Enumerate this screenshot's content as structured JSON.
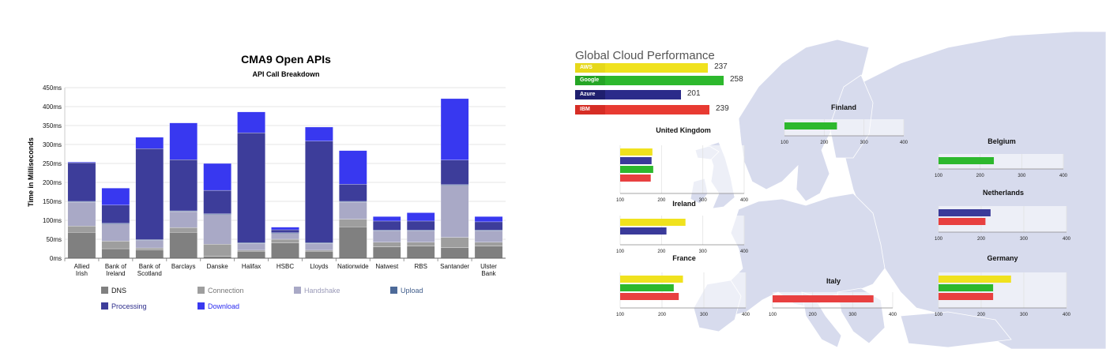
{
  "left_chart": {
    "title": "CMA9 Open APIs",
    "subtitle": "API Call Breakdown",
    "ylabel": "Time in Milliseconds",
    "yticks": [
      "0ms",
      "50ms",
      "100ms",
      "150ms",
      "200ms",
      "250ms",
      "300ms",
      "350ms",
      "400ms",
      "450ms"
    ],
    "legend": [
      "DNS",
      "Connection",
      "Handshake",
      "Upload",
      "Processing",
      "Download"
    ]
  },
  "right_chart": {
    "title": "Global Cloud Performance",
    "summary": [
      {
        "tag": "AWS",
        "value": "237"
      },
      {
        "tag": "Google",
        "value": "258"
      },
      {
        "tag": "Azure",
        "value": "201"
      },
      {
        "tag": "IBM",
        "value": "239"
      }
    ],
    "regions": [
      {
        "name": "United Kingdom"
      },
      {
        "name": "Ireland"
      },
      {
        "name": "France"
      },
      {
        "name": "Finland"
      },
      {
        "name": "Belgium"
      },
      {
        "name": "Netherlands"
      },
      {
        "name": "Italy"
      },
      {
        "name": "Germany"
      }
    ]
  },
  "chart_data": [
    {
      "type": "bar",
      "stacked": true,
      "title": "CMA9 Open APIs",
      "subtitle": "API Call Breakdown",
      "xlabel": "",
      "ylabel": "Time in Milliseconds",
      "ylim": [
        0,
        450
      ],
      "grid": true,
      "legend_position": "bottom",
      "categories": [
        "Allied Irish",
        "Bank of Ireland",
        "Bank of Scotland",
        "Barclays",
        "Danske",
        "Halifax",
        "HSBC",
        "Lloyds",
        "Nationwide",
        "Natwest",
        "RBS",
        "Santander",
        "Ulster Bank"
      ],
      "series": [
        {
          "name": "DNS",
          "color": "#808080",
          "values": [
            68,
            25,
            22,
            68,
            5,
            18,
            40,
            18,
            83,
            30,
            32,
            28,
            32
          ]
        },
        {
          "name": "Connection",
          "color": "#9e9e9e",
          "values": [
            17,
            20,
            5,
            13,
            32,
            3,
            10,
            3,
            20,
            12,
            10,
            27,
            10
          ]
        },
        {
          "name": "Handshake",
          "color": "#a9a9c6",
          "values": [
            63,
            45,
            20,
            42,
            78,
            18,
            15,
            18,
            45,
            30,
            30,
            137,
            30
          ]
        },
        {
          "name": "Upload",
          "color": "#4d6a99",
          "values": [
            2,
            2,
            2,
            2,
            2,
            2,
            2,
            2,
            2,
            2,
            2,
            2,
            2
          ]
        },
        {
          "name": "Processing",
          "color": "#3d3d9a",
          "values": [
            102,
            48,
            240,
            135,
            62,
            290,
            8,
            268,
            45,
            24,
            24,
            65,
            22
          ]
        },
        {
          "name": "Download",
          "color": "#3838f0",
          "values": [
            2,
            45,
            30,
            97,
            71,
            55,
            7,
            37,
            89,
            12,
            22,
            162,
            14
          ]
        }
      ]
    },
    {
      "type": "bar",
      "orientation": "horizontal",
      "title": "Global Cloud Performance",
      "categories": [
        "AWS",
        "Google",
        "Azure",
        "IBM"
      ],
      "values": [
        237,
        258,
        201,
        239
      ],
      "colors": [
        "#f0e21e",
        "#2db82d",
        "#2b2b8a",
        "#e83a32"
      ]
    },
    {
      "type": "bar",
      "orientation": "horizontal",
      "title": "United Kingdom",
      "xlim": [
        100,
        400
      ],
      "x_ticks": [
        100,
        200,
        300,
        400
      ],
      "series": [
        {
          "color": "#f0e21e",
          "value": 178
        },
        {
          "color": "#3a3a9a",
          "value": 176
        },
        {
          "color": "#2db82d",
          "value": 180
        },
        {
          "color": "#e84040",
          "value": 174
        }
      ]
    },
    {
      "type": "bar",
      "orientation": "horizontal",
      "title": "Ireland",
      "xlim": [
        100,
        400
      ],
      "x_ticks": [
        100,
        200,
        300,
        400
      ],
      "series": [
        {
          "color": "#f0e21e",
          "value": 258
        },
        {
          "color": "#3a3a9a",
          "value": 212
        }
      ]
    },
    {
      "type": "bar",
      "orientation": "horizontal",
      "title": "France",
      "xlim": [
        100,
        400
      ],
      "x_ticks": [
        100,
        200,
        300,
        400
      ],
      "series": [
        {
          "color": "#f0e21e",
          "value": 250
        },
        {
          "color": "#2db82d",
          "value": 228
        },
        {
          "color": "#e84040",
          "value": 240
        }
      ]
    },
    {
      "type": "bar",
      "orientation": "horizontal",
      "title": "Finland",
      "xlim": [
        100,
        400
      ],
      "x_ticks": [
        100,
        200,
        300,
        400
      ],
      "series": [
        {
          "color": "#2db82d",
          "value": 232
        }
      ]
    },
    {
      "type": "bar",
      "orientation": "horizontal",
      "title": "Belgium",
      "xlim": [
        100,
        400
      ],
      "x_ticks": [
        100,
        200,
        300,
        400
      ],
      "series": [
        {
          "color": "#2db82d",
          "value": 233
        }
      ]
    },
    {
      "type": "bar",
      "orientation": "horizontal",
      "title": "Netherlands",
      "xlim": [
        100,
        400
      ],
      "x_ticks": [
        100,
        200,
        300,
        400
      ],
      "series": [
        {
          "color": "#3a3a9a",
          "value": 222
        },
        {
          "color": "#e84040",
          "value": 210
        }
      ]
    },
    {
      "type": "bar",
      "orientation": "horizontal",
      "title": "Italy",
      "xlim": [
        100,
        400
      ],
      "x_ticks": [
        100,
        200,
        300,
        400
      ],
      "series": [
        {
          "color": "#e84040",
          "value": 352
        }
      ]
    },
    {
      "type": "bar",
      "orientation": "horizontal",
      "title": "Germany",
      "xlim": [
        100,
        400
      ],
      "x_ticks": [
        100,
        200,
        300,
        400
      ],
      "series": [
        {
          "color": "#f0e21e",
          "value": 270
        },
        {
          "color": "#2db82d",
          "value": 228
        },
        {
          "color": "#e84040",
          "value": 228
        }
      ]
    }
  ]
}
